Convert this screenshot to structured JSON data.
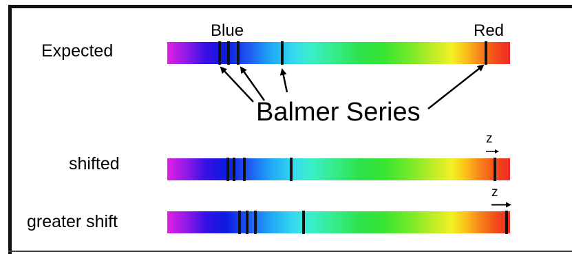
{
  "labels": {
    "expected": "Expected",
    "shifted": "shifted",
    "greater_shift": "greater shift",
    "blue": "Blue",
    "red": "Red",
    "balmer_series": "Balmer Series",
    "z": "z"
  },
  "colors": {
    "line": "#111111",
    "text": "#000000"
  },
  "rows": [
    {
      "id": "expected",
      "lines": [
        0.152,
        0.178,
        0.206,
        0.336,
        0.93
      ]
    },
    {
      "id": "shifted",
      "lines": [
        0.176,
        0.194,
        0.224,
        0.362,
        0.956
      ]
    },
    {
      "id": "greater",
      "lines": [
        0.21,
        0.232,
        0.258,
        0.398,
        0.99
      ]
    }
  ]
}
